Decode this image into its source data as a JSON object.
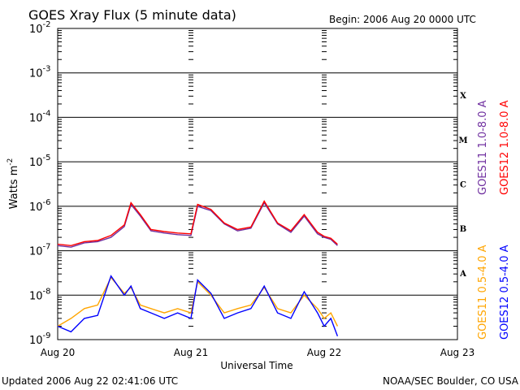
{
  "page": {
    "title": "GOES Xray Flux (5 minute data)",
    "begin": "Begin:  2006 Aug 20 0000 UTC",
    "updated": "Updated 2006 Aug 22 02:41:06 UTC",
    "credit": "NOAA/SEC Boulder, CO USA"
  },
  "chart_data": {
    "type": "line",
    "xlabel": "Universal Time",
    "ylabel": "Watts m",
    "ylabel_sup": "-2",
    "yscale": "log",
    "ylim": [
      1e-09,
      0.01
    ],
    "xlim_days": [
      0,
      3
    ],
    "x_ticks": [
      "Aug 20",
      "Aug 21",
      "Aug 22",
      "Aug 23"
    ],
    "y_ticks": [
      {
        "exp": "-9"
      },
      {
        "exp": "-8"
      },
      {
        "exp": "-7"
      },
      {
        "exp": "-6"
      },
      {
        "exp": "-5"
      },
      {
        "exp": "-4"
      },
      {
        "exp": "-3"
      },
      {
        "exp": "-2"
      }
    ],
    "flare_classes": [
      {
        "label": "A",
        "decade": -8
      },
      {
        "label": "B",
        "decade": -7
      },
      {
        "label": "C",
        "decade": -6
      },
      {
        "label": "M",
        "decade": -5
      },
      {
        "label": "X",
        "decade": -4
      }
    ],
    "grid": "horizontal at each decade",
    "legend_placement": "right",
    "series": [
      {
        "name": "GOES11 1.0-8.0 A",
        "color": "#7030a0",
        "x": [
          0.0,
          0.1,
          0.2,
          0.3,
          0.4,
          0.5,
          0.55,
          0.62,
          0.7,
          0.8,
          0.9,
          1.0,
          1.05,
          1.15,
          1.25,
          1.35,
          1.45,
          1.55,
          1.65,
          1.75,
          1.85,
          1.95,
          2.0,
          2.05,
          2.1
        ],
        "y": [
          1.3e-07,
          1.2e-07,
          1.5e-07,
          1.6e-07,
          2e-07,
          3.5e-07,
          1.1e-06,
          6e-07,
          2.8e-07,
          2.5e-07,
          2.3e-07,
          2.2e-07,
          1e-06,
          8e-07,
          4e-07,
          2.8e-07,
          3.2e-07,
          1.2e-06,
          4e-07,
          2.6e-07,
          6e-07,
          2.4e-07,
          2e-07,
          1.8e-07,
          1.3e-07
        ]
      },
      {
        "name": "GOES12 1.0-8.0 A",
        "color": "#ff0000",
        "x": [
          0.0,
          0.1,
          0.2,
          0.3,
          0.4,
          0.5,
          0.55,
          0.62,
          0.7,
          0.8,
          0.9,
          1.0,
          1.05,
          1.15,
          1.25,
          1.35,
          1.45,
          1.55,
          1.65,
          1.75,
          1.85,
          1.95,
          2.0,
          2.05,
          2.1
        ],
        "y": [
          1.4e-07,
          1.3e-07,
          1.6e-07,
          1.7e-07,
          2.2e-07,
          3.8e-07,
          1.2e-06,
          6.5e-07,
          3e-07,
          2.7e-07,
          2.5e-07,
          2.4e-07,
          1.1e-06,
          8.5e-07,
          4.2e-07,
          3e-07,
          3.4e-07,
          1.3e-06,
          4.2e-07,
          2.8e-07,
          6.5e-07,
          2.6e-07,
          2.1e-07,
          1.9e-07,
          1.4e-07
        ]
      },
      {
        "name": "GOES11 0.5-4.0 A",
        "color": "#ffa500",
        "x": [
          0.0,
          0.1,
          0.2,
          0.3,
          0.4,
          0.5,
          0.55,
          0.62,
          0.7,
          0.8,
          0.9,
          1.0,
          1.05,
          1.15,
          1.25,
          1.35,
          1.45,
          1.55,
          1.65,
          1.75,
          1.85,
          1.95,
          2.0,
          2.05,
          2.1
        ],
        "y": [
          2e-09,
          3e-09,
          5e-09,
          6e-09,
          2.5e-08,
          1.1e-08,
          1.5e-08,
          6e-09,
          5e-09,
          4e-09,
          5e-09,
          4e-09,
          2e-08,
          1e-08,
          4e-09,
          5e-09,
          6e-09,
          1.5e-08,
          5e-09,
          4e-09,
          1e-08,
          5e-09,
          3e-09,
          4e-09,
          2e-09
        ]
      },
      {
        "name": "GOES12 0.5-4.0 A",
        "color": "#0000ff",
        "x": [
          0.0,
          0.1,
          0.2,
          0.3,
          0.4,
          0.5,
          0.55,
          0.62,
          0.7,
          0.8,
          0.9,
          1.0,
          1.05,
          1.15,
          1.25,
          1.35,
          1.45,
          1.55,
          1.65,
          1.75,
          1.85,
          1.95,
          2.0,
          2.05,
          2.1
        ],
        "y": [
          2e-09,
          1.5e-09,
          3e-09,
          3.5e-09,
          2.7e-08,
          1e-08,
          1.6e-08,
          5e-09,
          4e-09,
          3e-09,
          4e-09,
          3e-09,
          2.2e-08,
          1.1e-08,
          3e-09,
          4e-09,
          5e-09,
          1.6e-08,
          4e-09,
          3e-09,
          1.2e-08,
          4e-09,
          2e-09,
          3e-09,
          1.2e-09
        ]
      }
    ]
  }
}
